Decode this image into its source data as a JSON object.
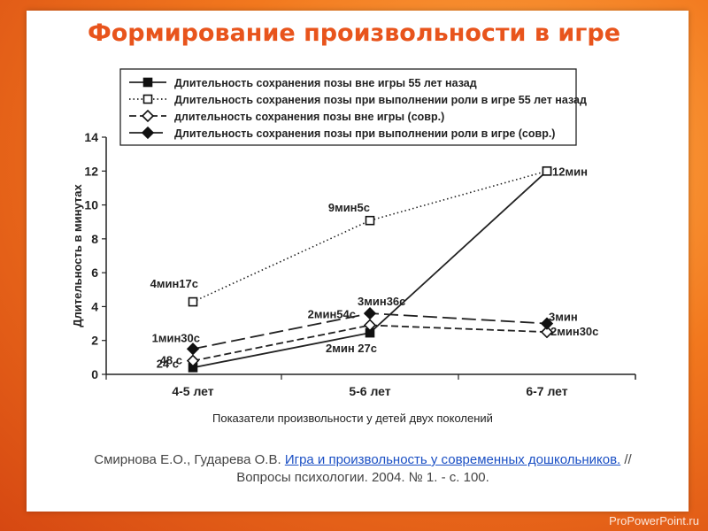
{
  "slide": {
    "title": "Формирование произвольности в игре",
    "caption": "Показатели произвольности у детей двух поколений",
    "reference": {
      "authors": "Смирнова Е.О., Гударева О.В.",
      "link_text": "Игра и произвольность у современных дошкольников.",
      "rest": "// Вопросы психологии. 2004. № 1. - с. 100."
    },
    "watermark": "ProPowerPoint.ru"
  },
  "chart_data": {
    "type": "line",
    "categories": [
      "4-5 лет",
      "5-6 лет",
      "6-7 лет"
    ],
    "ylabel": "Длительность в минутах",
    "ylim": [
      0,
      14
    ],
    "yticks": [
      0,
      2,
      4,
      6,
      8,
      10,
      12,
      14
    ],
    "grid": false,
    "legend_position": "top",
    "series": [
      {
        "name": "Длительность сохранения позы вне игры 55 лет назад",
        "values": [
          0.4,
          2.45,
          12
        ],
        "marker": "square-filled",
        "dash": "solid",
        "labels": [
          "24 с",
          "2мин 27с",
          "12мин"
        ]
      },
      {
        "name": "Длительность сохранения позы при выполнении роли в игре 55 лет назад",
        "values": [
          4.28,
          9.08,
          12
        ],
        "marker": "square-open",
        "dash": "dotted",
        "labels": [
          "4мин17с",
          "9мин5с",
          ""
        ]
      },
      {
        "name": "длительность сохранения позы вне игры (совр.)",
        "values": [
          0.8,
          2.9,
          2.5
        ],
        "marker": "diamond-open",
        "dash": "short-dash",
        "labels": [
          "48 с",
          "2мин54с",
          "2мин30с"
        ]
      },
      {
        "name": "Длительность сохранения позы при выполнении роли в игре (совр.)",
        "values": [
          1.5,
          3.6,
          3
        ],
        "marker": "diamond-filled",
        "dash": "long-dash",
        "labels": [
          "1мин30с",
          "3мин36с",
          "3мин"
        ]
      }
    ]
  }
}
